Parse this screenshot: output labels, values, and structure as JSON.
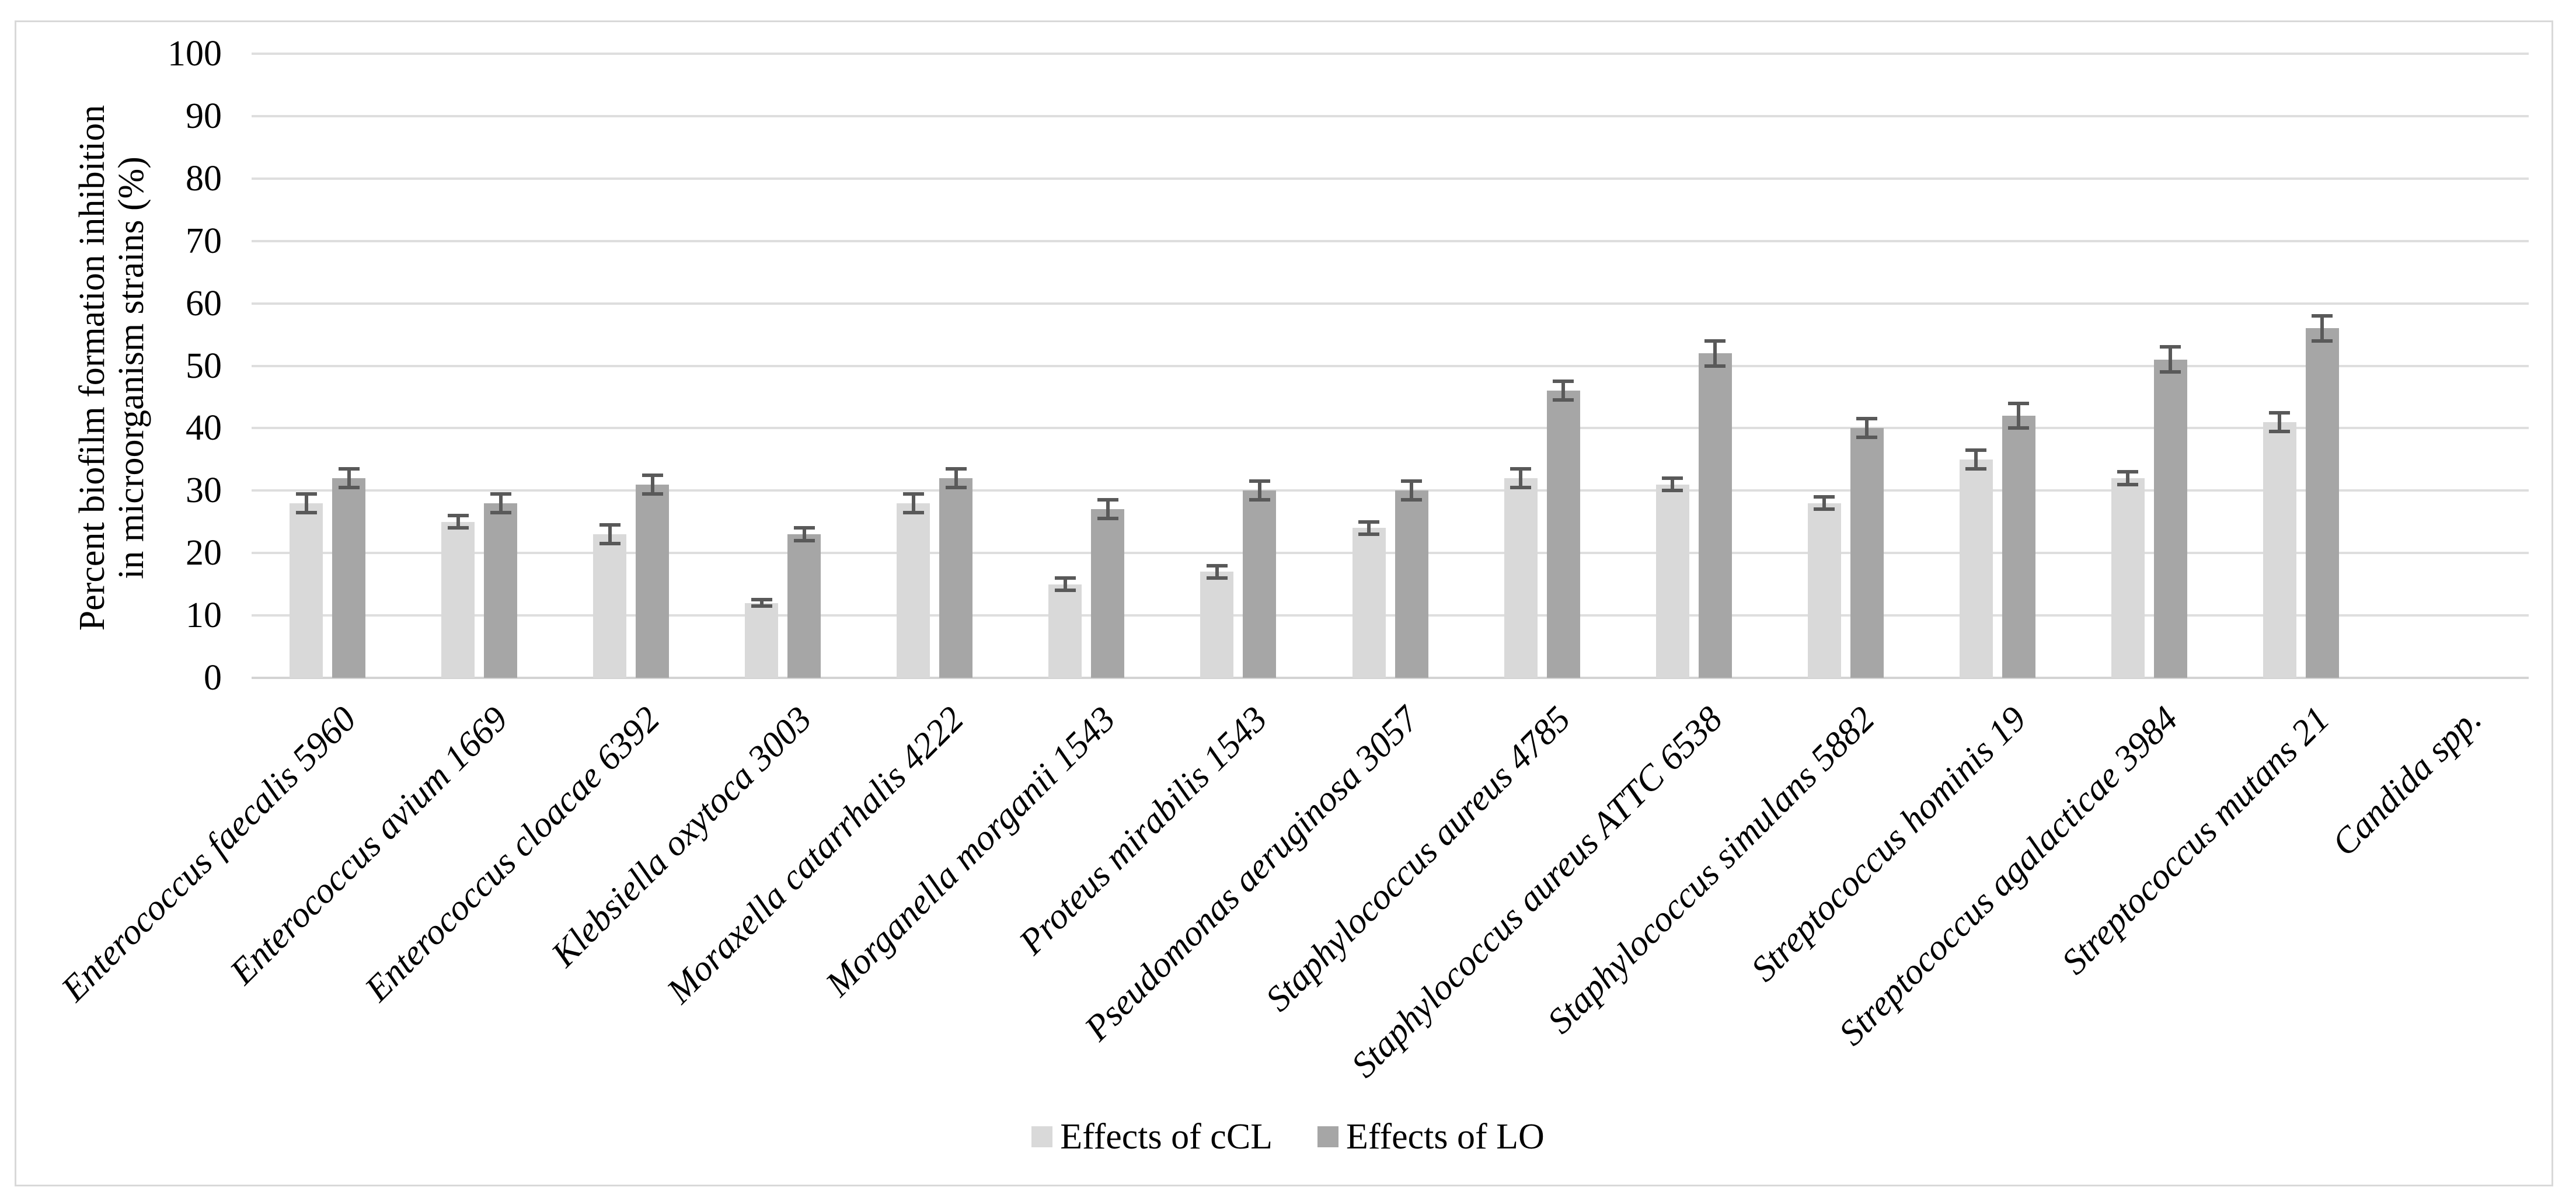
{
  "chart_data": {
    "type": "bar",
    "title": "",
    "ylabel_line1": "Percent biofilm formation inhibition",
    "ylabel_line2": "in microorganism strains (%)",
    "xlabel": "",
    "ylim": [
      0,
      100
    ],
    "yticks": [
      0,
      10,
      20,
      30,
      40,
      50,
      60,
      70,
      80,
      90,
      100
    ],
    "grid": true,
    "legend_position": "bottom-center",
    "error_bar_color": "#595959",
    "gridline_color": "#dedede",
    "categories": [
      "Enterococcus  faecalis 5960",
      "Enterococcus avium 1669",
      "Enterococcus cloacae 6392",
      "Klebsiella oxytoca 3003",
      "Moraxella catarrhalis 4222",
      "Morganella morganii 1543",
      "Proteus mirabilis 1543",
      "Pseudomonas aeruginosa 3057",
      "Staphylococcus aureus 4785",
      "Staphylococcus aureus ATTC 6538",
      "Staphylococcus simulans 5882",
      "Streptococcus hominis 19",
      "Streptococcus agalacticae 3984",
      "Streptococcus mutans 21",
      "Candida spp."
    ],
    "series": [
      {
        "name": "Effects of cCL",
        "color": "#d9d9d9",
        "values": [
          28,
          25,
          23,
          12,
          28,
          15,
          17,
          24,
          32,
          31,
          28,
          35,
          32,
          41,
          null
        ],
        "errors": [
          1.5,
          1,
          1.5,
          0.5,
          1.5,
          1,
          1,
          1,
          1.5,
          1,
          1,
          1.5,
          1,
          1.5,
          null
        ]
      },
      {
        "name": "Effects of LO",
        "color": "#a6a6a6",
        "values": [
          32,
          28,
          31,
          23,
          32,
          27,
          30,
          30,
          46,
          52,
          40,
          42,
          51,
          56,
          null
        ],
        "errors": [
          1.5,
          1.5,
          1.5,
          1,
          1.5,
          1.5,
          1.5,
          1.5,
          1.5,
          2,
          1.5,
          2,
          2,
          2,
          null
        ]
      }
    ]
  }
}
